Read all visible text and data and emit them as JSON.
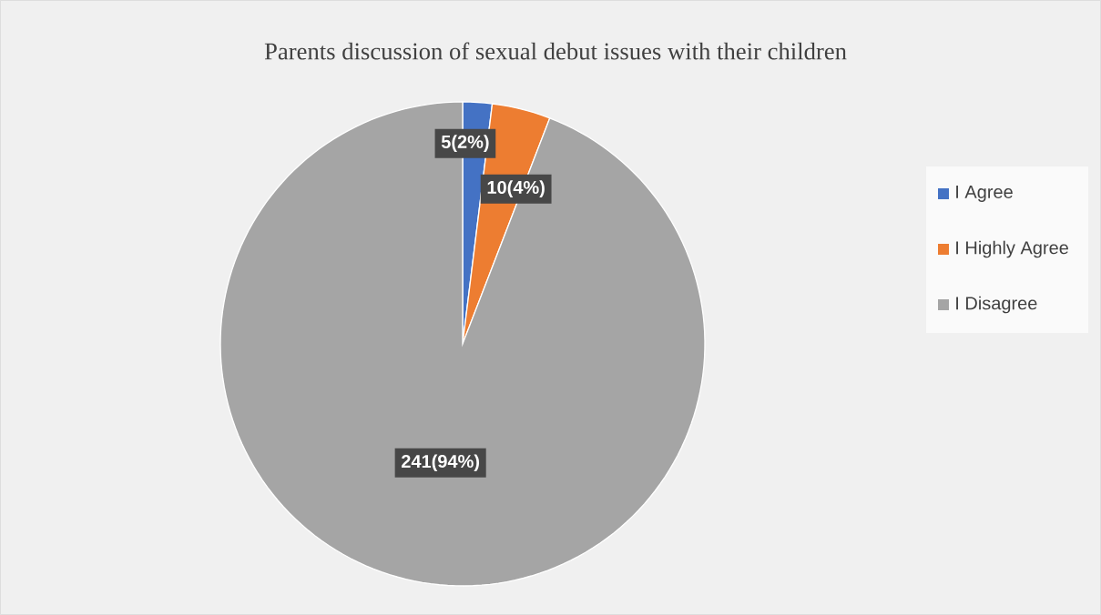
{
  "chart_data": {
    "type": "pie",
    "title": "Parents discussion of sexual debut issues with their children",
    "categories": [
      "I Agree",
      "I Highly Agree",
      "I Disagree"
    ],
    "values": [
      5,
      10,
      241
    ],
    "colors": [
      "#4472c4",
      "#ed7d31",
      "#a5a5a5"
    ],
    "value_labels": [
      "5(2%)",
      "10(4%)",
      "241(94%)"
    ],
    "legend": "right"
  }
}
